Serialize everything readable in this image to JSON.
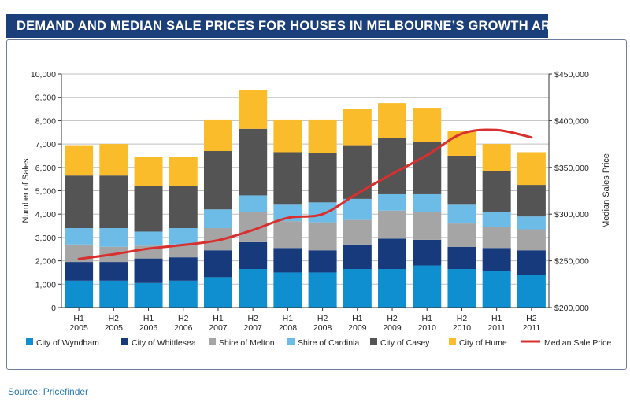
{
  "title": "DEMAND AND MEDIAN SALE PRICES FOR HOUSES IN MELBOURNE’S GROWTH AREAS",
  "source": "Source: Pricefinder",
  "chart_data": {
    "type": "bar",
    "stacked": true,
    "title": "DEMAND AND MEDIAN SALE PRICES FOR HOUSES IN MELBOURNE’S GROWTH AREAS",
    "ylabel": "Number of Sales",
    "y2label": "Median Sales Price",
    "ylim": [
      0,
      10000
    ],
    "y2lim": [
      200000,
      450000
    ],
    "yticks": [
      "0",
      "1,000",
      "2,000",
      "3,000",
      "4,000",
      "5,000",
      "6,000",
      "7,000",
      "8,000",
      "9,000",
      "10,000"
    ],
    "y2ticks": [
      "$200,000",
      "$250,000",
      "$300,000",
      "$350,000",
      "$400,000",
      "$450,000"
    ],
    "grid": "horizontal",
    "legend_position": "bottom",
    "categories": [
      [
        "H1",
        "2005"
      ],
      [
        "H2",
        "2005"
      ],
      [
        "H1",
        "2006"
      ],
      [
        "H2",
        "2006"
      ],
      [
        "H1",
        "2007"
      ],
      [
        "H2",
        "2007"
      ],
      [
        "H1",
        "2008"
      ],
      [
        "H2",
        "2008"
      ],
      [
        "H1",
        "2009"
      ],
      [
        "H2",
        "2009"
      ],
      [
        "H1",
        "2010"
      ],
      [
        "H2",
        "2010"
      ],
      [
        "H1",
        "2011"
      ],
      [
        "H2",
        "2011"
      ]
    ],
    "series": [
      {
        "name": "City of Wyndham",
        "color": "#0f8fcf",
        "values": [
          1150,
          1150,
          1050,
          1150,
          1300,
          1650,
          1500,
          1500,
          1650,
          1650,
          1800,
          1650,
          1550,
          1400
        ]
      },
      {
        "name": "City of Whittlesea",
        "color": "#173a7c",
        "values": [
          800,
          800,
          1050,
          1000,
          1150,
          1150,
          1050,
          950,
          1050,
          1300,
          1100,
          950,
          1000,
          1050
        ]
      },
      {
        "name": "Shire of Melton",
        "color": "#a5a5a5",
        "values": [
          750,
          650,
          550,
          550,
          950,
          1300,
          1150,
          1200,
          1050,
          1200,
          1200,
          1000,
          900,
          900
        ]
      },
      {
        "name": "Shire of Cardinia",
        "color": "#6dbce7",
        "values": [
          700,
          800,
          600,
          700,
          800,
          700,
          700,
          850,
          900,
          700,
          750,
          800,
          650,
          550
        ]
      },
      {
        "name": "City of Casey",
        "color": "#545454",
        "values": [
          2250,
          2250,
          1950,
          1800,
          2500,
          2850,
          2250,
          2100,
          2300,
          2400,
          2250,
          2100,
          1750,
          1350
        ]
      },
      {
        "name": "City of Hume",
        "color": "#fbbc2b",
        "values": [
          1300,
          1350,
          1250,
          1250,
          1350,
          1650,
          1400,
          1450,
          1550,
          1500,
          1450,
          1050,
          1150,
          1400
        ]
      }
    ],
    "line_series": {
      "name": "Median Sale Price",
      "color": "#d8302e",
      "axis": "right",
      "values": [
        252000,
        257000,
        263000,
        267000,
        272000,
        283000,
        296000,
        300000,
        322000,
        343000,
        363000,
        386000,
        390000,
        382000
      ]
    }
  }
}
